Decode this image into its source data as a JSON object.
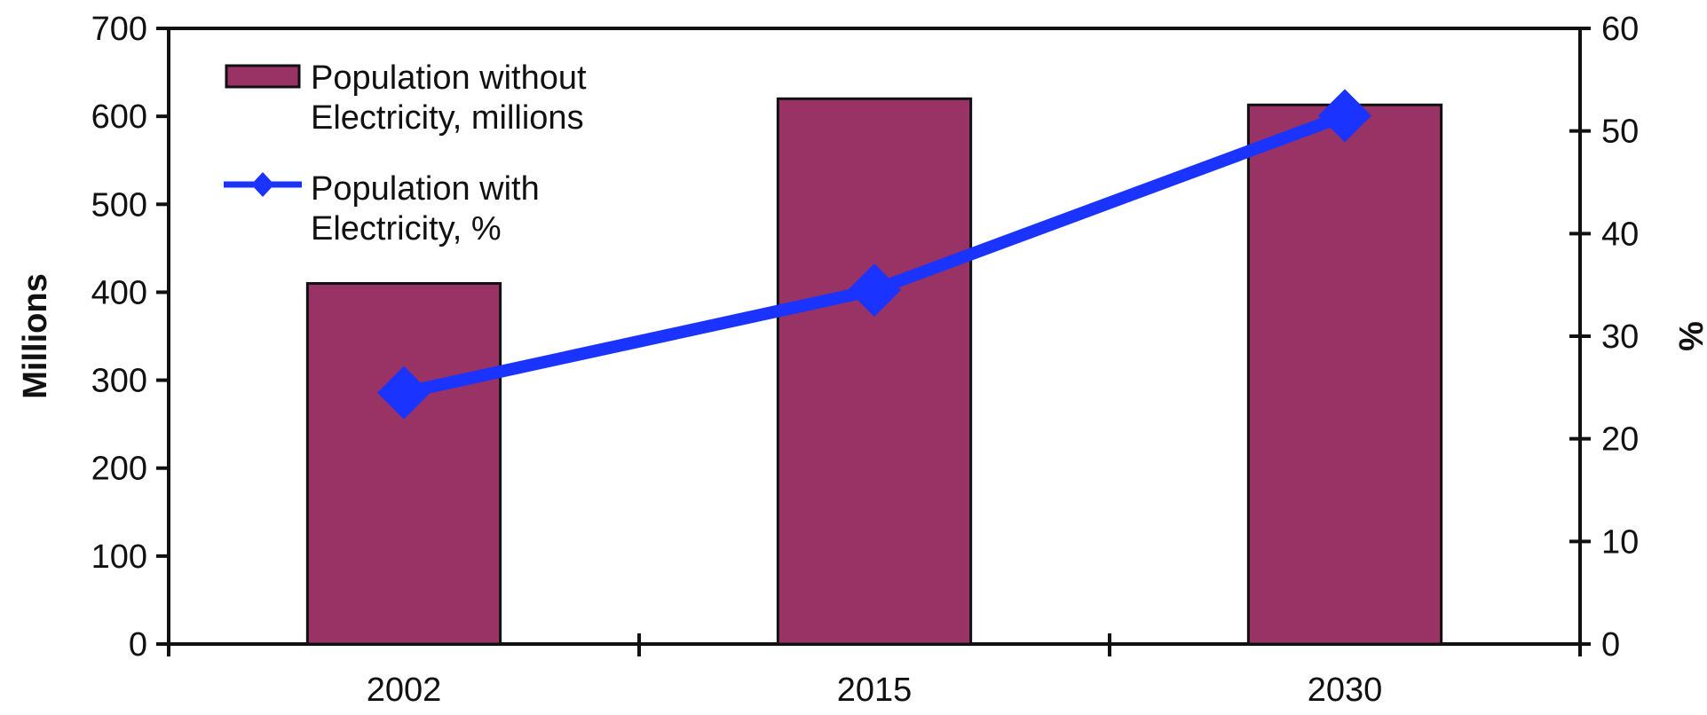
{
  "chart_data": {
    "type": "bar+line",
    "categories": [
      "2002",
      "2015",
      "2030"
    ],
    "series": [
      {
        "name": "Population without Electricity, millions",
        "legend_lines": [
          "Population without",
          "Electricity, millions"
        ],
        "type": "bar",
        "axis": "left",
        "values": [
          410,
          620,
          613
        ],
        "color": "#993366"
      },
      {
        "name": "Population with Electricity, %",
        "legend_lines": [
          "Population with",
          "Electricity, %"
        ],
        "type": "line",
        "axis": "right",
        "marker": "diamond",
        "values": [
          24.5,
          34.5,
          51.5
        ],
        "color": "#1a33ff"
      }
    ],
    "y_left": {
      "label": "Millions",
      "range": [
        0,
        700
      ],
      "ticks": [
        0,
        100,
        200,
        300,
        400,
        500,
        600,
        700
      ]
    },
    "y_right": {
      "label": "%",
      "range": [
        0,
        60
      ],
      "ticks": [
        0,
        10,
        20,
        30,
        40,
        50,
        60
      ]
    },
    "grid": false,
    "legend_position": "top-left"
  }
}
